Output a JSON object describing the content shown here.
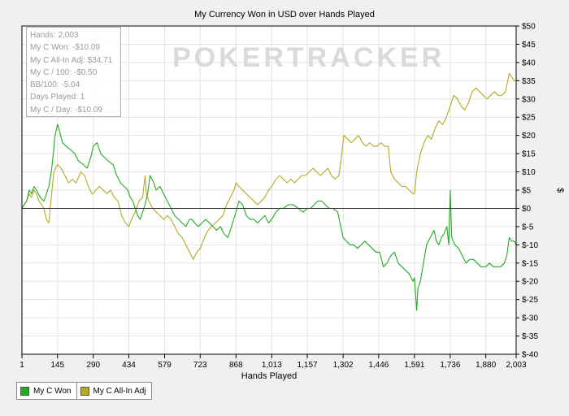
{
  "chart_data": {
    "type": "line",
    "title": "My Currency Won in USD over Hands Played",
    "xlabel": "Hands Played",
    "ylabel": "$",
    "xlim": [
      1,
      2003
    ],
    "ylim": [
      -40,
      50
    ],
    "x_ticks": [
      1,
      145,
      290,
      434,
      579,
      723,
      868,
      1013,
      1157,
      1302,
      1446,
      1591,
      1736,
      1880,
      2003
    ],
    "x_tick_labels": [
      "1",
      "145",
      "290",
      "434",
      "579",
      "723",
      "868",
      "1,013",
      "1,157",
      "1,302",
      "1,446",
      "1,591",
      "1,736",
      "1,880",
      "2,003"
    ],
    "y_ticks": [
      50,
      45,
      40,
      35,
      30,
      25,
      20,
      15,
      10,
      5,
      0,
      -5,
      -10,
      -15,
      -20,
      -25,
      -30,
      -35,
      -40
    ],
    "y_tick_labels": [
      "$50",
      "$45",
      "$40",
      "$35",
      "$30",
      "$25",
      "$20",
      "$15",
      "$10",
      "$5",
      "$0",
      "$-5",
      "$-10",
      "$-15",
      "$-20",
      "$-25",
      "$-30",
      "$-35",
      "$-40"
    ],
    "grid": true,
    "legend": "bottom-left",
    "watermark": "POKERTRACKER",
    "series": [
      {
        "name": "My C Won",
        "color": "#22aa22",
        "points": [
          [
            1,
            0
          ],
          [
            10,
            1
          ],
          [
            20,
            2
          ],
          [
            30,
            5
          ],
          [
            40,
            4
          ],
          [
            50,
            6
          ],
          [
            60,
            5
          ],
          [
            75,
            3
          ],
          [
            90,
            2
          ],
          [
            100,
            4
          ],
          [
            110,
            6
          ],
          [
            120,
            10
          ],
          [
            128,
            15
          ],
          [
            135,
            20
          ],
          [
            145,
            23
          ],
          [
            150,
            22
          ],
          [
            165,
            18
          ],
          [
            180,
            17
          ],
          [
            200,
            16
          ],
          [
            215,
            15
          ],
          [
            230,
            13
          ],
          [
            250,
            12
          ],
          [
            265,
            11
          ],
          [
            280,
            14
          ],
          [
            290,
            17
          ],
          [
            305,
            18
          ],
          [
            320,
            15
          ],
          [
            335,
            14
          ],
          [
            350,
            13
          ],
          [
            370,
            12
          ],
          [
            385,
            9
          ],
          [
            400,
            7
          ],
          [
            415,
            6
          ],
          [
            430,
            5
          ],
          [
            440,
            3
          ],
          [
            450,
            2
          ],
          [
            460,
            0
          ],
          [
            470,
            -2
          ],
          [
            480,
            -3
          ],
          [
            490,
            -1
          ],
          [
            500,
            1
          ],
          [
            510,
            4
          ],
          [
            520,
            9
          ],
          [
            535,
            7
          ],
          [
            545,
            5
          ],
          [
            560,
            6
          ],
          [
            575,
            4
          ],
          [
            590,
            2
          ],
          [
            605,
            0
          ],
          [
            620,
            -2
          ],
          [
            635,
            -3
          ],
          [
            650,
            -4
          ],
          [
            665,
            -5
          ],
          [
            680,
            -3
          ],
          [
            690,
            -3
          ],
          [
            700,
            -4
          ],
          [
            715,
            -5
          ],
          [
            730,
            -4
          ],
          [
            745,
            -3
          ],
          [
            760,
            -4
          ],
          [
            775,
            -5
          ],
          [
            790,
            -6
          ],
          [
            805,
            -5
          ],
          [
            820,
            -7
          ],
          [
            835,
            -8
          ],
          [
            850,
            -5
          ],
          [
            868,
            -1
          ],
          [
            880,
            2
          ],
          [
            895,
            1
          ],
          [
            910,
            -2
          ],
          [
            925,
            -3
          ],
          [
            940,
            -3
          ],
          [
            955,
            -4
          ],
          [
            970,
            -3
          ],
          [
            985,
            -2
          ],
          [
            1000,
            -4
          ],
          [
            1013,
            -3
          ],
          [
            1030,
            -1
          ],
          [
            1045,
            0
          ],
          [
            1060,
            0
          ],
          [
            1080,
            1
          ],
          [
            1100,
            1
          ],
          [
            1120,
            0
          ],
          [
            1140,
            -1
          ],
          [
            1157,
            0
          ],
          [
            1170,
            0
          ],
          [
            1185,
            1
          ],
          [
            1200,
            2
          ],
          [
            1215,
            2
          ],
          [
            1230,
            1
          ],
          [
            1245,
            0
          ],
          [
            1260,
            0
          ],
          [
            1280,
            -1
          ],
          [
            1302,
            -8
          ],
          [
            1315,
            -9
          ],
          [
            1330,
            -10
          ],
          [
            1345,
            -10
          ],
          [
            1360,
            -11
          ],
          [
            1375,
            -10
          ],
          [
            1390,
            -9
          ],
          [
            1405,
            -10
          ],
          [
            1420,
            -11
          ],
          [
            1435,
            -12
          ],
          [
            1450,
            -12
          ],
          [
            1465,
            -16
          ],
          [
            1480,
            -15
          ],
          [
            1495,
            -13
          ],
          [
            1510,
            -12
          ],
          [
            1525,
            -15
          ],
          [
            1540,
            -16
          ],
          [
            1555,
            -17
          ],
          [
            1570,
            -18
          ],
          [
            1585,
            -20
          ],
          [
            1591,
            -19
          ],
          [
            1600,
            -28
          ],
          [
            1605,
            -22
          ],
          [
            1615,
            -20
          ],
          [
            1625,
            -16
          ],
          [
            1640,
            -10
          ],
          [
            1655,
            -8
          ],
          [
            1670,
            -6
          ],
          [
            1680,
            -9
          ],
          [
            1690,
            -10
          ],
          [
            1700,
            -8
          ],
          [
            1710,
            -7
          ],
          [
            1722,
            -5
          ],
          [
            1730,
            -10
          ],
          [
            1736,
            5
          ],
          [
            1742,
            -8
          ],
          [
            1755,
            -10
          ],
          [
            1770,
            -11
          ],
          [
            1785,
            -13
          ],
          [
            1800,
            -15
          ],
          [
            1815,
            -14
          ],
          [
            1830,
            -14
          ],
          [
            1845,
            -15
          ],
          [
            1860,
            -16
          ],
          [
            1880,
            -16
          ],
          [
            1895,
            -15
          ],
          [
            1910,
            -16
          ],
          [
            1925,
            -16
          ],
          [
            1940,
            -16
          ],
          [
            1955,
            -15
          ],
          [
            1965,
            -13
          ],
          [
            1975,
            -8
          ],
          [
            1985,
            -9
          ],
          [
            1995,
            -9
          ],
          [
            2003,
            -10
          ]
        ]
      },
      {
        "name": "My C All-In Adj",
        "color": "#b5a822",
        "points": [
          [
            1,
            0
          ],
          [
            10,
            1
          ],
          [
            20,
            2
          ],
          [
            30,
            4
          ],
          [
            40,
            3
          ],
          [
            50,
            5
          ],
          [
            60,
            4
          ],
          [
            70,
            2
          ],
          [
            80,
            1
          ],
          [
            90,
            0
          ],
          [
            100,
            -3
          ],
          [
            110,
            -4
          ],
          [
            120,
            3
          ],
          [
            130,
            10
          ],
          [
            145,
            12
          ],
          [
            160,
            11
          ],
          [
            175,
            9
          ],
          [
            190,
            7
          ],
          [
            205,
            8
          ],
          [
            220,
            7
          ],
          [
            240,
            10
          ],
          [
            255,
            9
          ],
          [
            270,
            6
          ],
          [
            285,
            4
          ],
          [
            290,
            4
          ],
          [
            300,
            5
          ],
          [
            315,
            6
          ],
          [
            330,
            5
          ],
          [
            345,
            4
          ],
          [
            360,
            5
          ],
          [
            375,
            3
          ],
          [
            390,
            2
          ],
          [
            405,
            -2
          ],
          [
            420,
            -4
          ],
          [
            434,
            -5
          ],
          [
            445,
            -3
          ],
          [
            460,
            -1
          ],
          [
            475,
            2
          ],
          [
            490,
            3
          ],
          [
            500,
            9
          ],
          [
            505,
            4
          ],
          [
            515,
            2
          ],
          [
            530,
            0
          ],
          [
            545,
            -1
          ],
          [
            560,
            -2
          ],
          [
            575,
            -3
          ],
          [
            590,
            -2
          ],
          [
            605,
            -3
          ],
          [
            620,
            -5
          ],
          [
            635,
            -7
          ],
          [
            650,
            -8
          ],
          [
            665,
            -10
          ],
          [
            680,
            -12
          ],
          [
            695,
            -14
          ],
          [
            710,
            -12
          ],
          [
            723,
            -11
          ],
          [
            740,
            -8
          ],
          [
            755,
            -6
          ],
          [
            770,
            -5
          ],
          [
            785,
            -4
          ],
          [
            800,
            -3
          ],
          [
            815,
            -2
          ],
          [
            830,
            1
          ],
          [
            845,
            3
          ],
          [
            860,
            5
          ],
          [
            868,
            7
          ],
          [
            880,
            6
          ],
          [
            895,
            5
          ],
          [
            910,
            4
          ],
          [
            925,
            3
          ],
          [
            940,
            2
          ],
          [
            955,
            1
          ],
          [
            970,
            2
          ],
          [
            985,
            3
          ],
          [
            1000,
            5
          ],
          [
            1013,
            6
          ],
          [
            1030,
            8
          ],
          [
            1045,
            9
          ],
          [
            1060,
            8
          ],
          [
            1075,
            7
          ],
          [
            1090,
            8
          ],
          [
            1105,
            7
          ],
          [
            1120,
            8
          ],
          [
            1135,
            9
          ],
          [
            1150,
            9
          ],
          [
            1165,
            10
          ],
          [
            1180,
            11
          ],
          [
            1195,
            10
          ],
          [
            1210,
            9
          ],
          [
            1225,
            10
          ],
          [
            1240,
            11
          ],
          [
            1255,
            9
          ],
          [
            1270,
            8
          ],
          [
            1285,
            9
          ],
          [
            1295,
            14
          ],
          [
            1305,
            20
          ],
          [
            1320,
            19
          ],
          [
            1335,
            18
          ],
          [
            1350,
            19
          ],
          [
            1365,
            20
          ],
          [
            1380,
            18
          ],
          [
            1395,
            17
          ],
          [
            1410,
            18
          ],
          [
            1425,
            17
          ],
          [
            1440,
            17
          ],
          [
            1455,
            18
          ],
          [
            1470,
            17
          ],
          [
            1485,
            17
          ],
          [
            1495,
            10
          ],
          [
            1510,
            8
          ],
          [
            1525,
            7
          ],
          [
            1540,
            6
          ],
          [
            1555,
            6
          ],
          [
            1570,
            5
          ],
          [
            1585,
            4
          ],
          [
            1591,
            4
          ],
          [
            1600,
            10
          ],
          [
            1615,
            15
          ],
          [
            1630,
            18
          ],
          [
            1645,
            20
          ],
          [
            1660,
            19
          ],
          [
            1675,
            22
          ],
          [
            1690,
            24
          ],
          [
            1705,
            23
          ],
          [
            1720,
            25
          ],
          [
            1736,
            28
          ],
          [
            1750,
            31
          ],
          [
            1765,
            30
          ],
          [
            1780,
            28
          ],
          [
            1795,
            27
          ],
          [
            1810,
            29
          ],
          [
            1825,
            32
          ],
          [
            1840,
            33
          ],
          [
            1855,
            32
          ],
          [
            1870,
            31
          ],
          [
            1885,
            30
          ],
          [
            1900,
            31
          ],
          [
            1915,
            32
          ],
          [
            1930,
            31
          ],
          [
            1945,
            31
          ],
          [
            1960,
            32
          ],
          [
            1975,
            37
          ],
          [
            1985,
            36
          ],
          [
            1995,
            35
          ],
          [
            2003,
            35
          ]
        ]
      }
    ]
  },
  "stats": {
    "hands": "Hands: 2,003",
    "won": "My C Won: -$10.09",
    "allin": "My C All-In Adj: $34.71",
    "per100": "My C / 100: -$0.50",
    "bb100": "BB/100: -5.04",
    "days": "Days Played: 1",
    "perday": "My C / Day: -$10.09"
  }
}
